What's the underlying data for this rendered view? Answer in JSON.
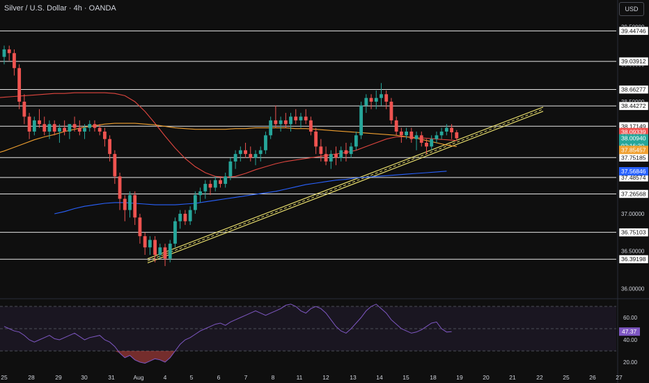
{
  "header": {
    "symbol_title": "Silver / U.S. Dollar · 4h · OANDA",
    "currency_button": "USD"
  },
  "colors": {
    "background": "#0f0f0f",
    "up": "#26a69a",
    "down": "#ef5350",
    "ema_fast": "#e0463f",
    "ema_mid": "#f0a030",
    "ema_slow": "#2962ff",
    "trendline": "#e6dc6c",
    "rsi": "#7e57c2",
    "level_line": "#e6e6e6"
  },
  "chart_data": [
    {
      "type": "candlestick",
      "title": "Silver / U.S. Dollar · 4h · OANDA",
      "ylim": [
        35.9,
        39.6
      ],
      "x_ticks": [
        "25",
        "28",
        "29",
        "30",
        "31",
        "Aug",
        "4",
        "5",
        "6",
        "7",
        "8",
        "11",
        "12",
        "13",
        "14",
        "15",
        "18",
        "19",
        "20",
        "21",
        "22",
        "25",
        "26",
        "27"
      ],
      "y_ticks": [
        "39.50000",
        "39.00000",
        "38.50000",
        "38.00000",
        "37.50000",
        "37.00000",
        "36.50000",
        "36.00000"
      ],
      "horizontal_levels": [
        "39.44746",
        "39.03912",
        "38.66277",
        "38.44272",
        "38.17149",
        "37.75185",
        "37.48574",
        "37.26568",
        "36.75103",
        "36.39198"
      ],
      "price_labels": [
        {
          "label": "38.09339",
          "value": 38.09339,
          "color": "#ef5350"
        },
        {
          "label": "38.00940",
          "value": 38.0094,
          "color": "#26a69a"
        },
        {
          "label": "02:16:30",
          "value": 37.95,
          "color": "#26a69a"
        },
        {
          "label": "37.85457",
          "value": 37.85457,
          "color": "#f0a030"
        },
        {
          "label": "37.56846",
          "value": 37.56846,
          "color": "#2962ff"
        }
      ],
      "candles_ohlc": [
        [
          39.1,
          39.25,
          39.0,
          39.2
        ],
        [
          39.2,
          39.25,
          39.05,
          39.15
        ],
        [
          39.15,
          39.2,
          38.85,
          38.95
        ],
        [
          38.95,
          39.0,
          38.4,
          38.5
        ],
        [
          38.5,
          38.6,
          38.2,
          38.3
        ],
        [
          38.3,
          38.35,
          38.0,
          38.1
        ],
        [
          38.1,
          38.3,
          38.05,
          38.25
        ],
        [
          38.25,
          38.4,
          38.15,
          38.2
        ],
        [
          38.2,
          38.3,
          38.05,
          38.1
        ],
        [
          38.1,
          38.25,
          38.0,
          38.2
        ],
        [
          38.2,
          38.25,
          38.05,
          38.1
        ],
        [
          38.1,
          38.2,
          37.95,
          38.15
        ],
        [
          38.15,
          38.25,
          38.05,
          38.1
        ],
        [
          38.1,
          38.2,
          38.0,
          38.2
        ],
        [
          38.2,
          38.3,
          38.1,
          38.15
        ],
        [
          38.15,
          38.25,
          38.05,
          38.1
        ],
        [
          38.1,
          38.2,
          38.0,
          38.15
        ],
        [
          38.15,
          38.25,
          38.1,
          38.2
        ],
        [
          38.2,
          38.25,
          38.1,
          38.15
        ],
        [
          38.15,
          38.2,
          38.05,
          38.1
        ],
        [
          38.1,
          38.15,
          37.9,
          38.0
        ],
        [
          38.0,
          38.05,
          37.7,
          37.8
        ],
        [
          37.8,
          37.85,
          37.4,
          37.5
        ],
        [
          37.5,
          37.55,
          37.05,
          37.2
        ],
        [
          37.2,
          37.25,
          36.9,
          37.05
        ],
        [
          37.05,
          37.3,
          36.95,
          37.25
        ],
        [
          37.25,
          37.3,
          36.85,
          36.95
        ],
        [
          36.95,
          37.0,
          36.6,
          36.7
        ],
        [
          36.7,
          36.75,
          36.45,
          36.55
        ],
        [
          36.55,
          36.7,
          36.45,
          36.65
        ],
        [
          36.65,
          36.7,
          36.35,
          36.45
        ],
        [
          36.45,
          36.6,
          36.4,
          36.55
        ],
        [
          36.55,
          36.6,
          36.3,
          36.4
        ],
        [
          36.4,
          36.65,
          36.35,
          36.6
        ],
        [
          36.6,
          36.95,
          36.55,
          36.9
        ],
        [
          36.9,
          37.05,
          36.8,
          37.0
        ],
        [
          37.0,
          37.05,
          36.85,
          36.9
        ],
        [
          36.9,
          37.1,
          36.85,
          37.05
        ],
        [
          37.05,
          37.3,
          37.0,
          37.25
        ],
        [
          37.25,
          37.35,
          37.15,
          37.3
        ],
        [
          37.3,
          37.45,
          37.2,
          37.4
        ],
        [
          37.4,
          37.45,
          37.25,
          37.35
        ],
        [
          37.35,
          37.5,
          37.3,
          37.45
        ],
        [
          37.45,
          37.5,
          37.35,
          37.4
        ],
        [
          37.4,
          37.55,
          37.35,
          37.5
        ],
        [
          37.5,
          37.75,
          37.45,
          37.7
        ],
        [
          37.7,
          37.85,
          37.6,
          37.8
        ],
        [
          37.8,
          37.9,
          37.7,
          37.85
        ],
        [
          37.85,
          37.95,
          37.75,
          37.8
        ],
        [
          37.8,
          37.9,
          37.7,
          37.75
        ],
        [
          37.75,
          37.85,
          37.65,
          37.8
        ],
        [
          37.8,
          37.9,
          37.7,
          37.85
        ],
        [
          37.85,
          38.1,
          37.8,
          38.05
        ],
        [
          38.05,
          38.3,
          38.0,
          38.25
        ],
        [
          38.25,
          38.45,
          38.15,
          38.2
        ],
        [
          38.2,
          38.3,
          38.1,
          38.25
        ],
        [
          38.25,
          38.35,
          38.15,
          38.2
        ],
        [
          38.2,
          38.35,
          38.1,
          38.3
        ],
        [
          38.3,
          38.4,
          38.2,
          38.25
        ],
        [
          38.25,
          38.35,
          38.15,
          38.3
        ],
        [
          38.3,
          38.4,
          38.2,
          38.25
        ],
        [
          38.25,
          38.3,
          38.05,
          38.1
        ],
        [
          38.1,
          38.15,
          37.8,
          37.9
        ],
        [
          37.9,
          38.0,
          37.7,
          37.8
        ],
        [
          37.8,
          37.9,
          37.65,
          37.7
        ],
        [
          37.7,
          37.85,
          37.6,
          37.8
        ],
        [
          37.8,
          37.9,
          37.65,
          37.75
        ],
        [
          37.75,
          37.9,
          37.7,
          37.85
        ],
        [
          37.85,
          37.95,
          37.7,
          37.8
        ],
        [
          37.8,
          37.95,
          37.75,
          37.9
        ],
        [
          37.9,
          38.1,
          37.85,
          38.05
        ],
        [
          38.05,
          38.5,
          38.0,
          38.45
        ],
        [
          38.45,
          38.6,
          38.35,
          38.55
        ],
        [
          38.55,
          38.6,
          38.4,
          38.5
        ],
        [
          38.5,
          38.65,
          38.4,
          38.55
        ],
        [
          38.55,
          38.75,
          38.45,
          38.6
        ],
        [
          38.6,
          38.65,
          38.4,
          38.5
        ],
        [
          38.5,
          38.55,
          38.2,
          38.25
        ],
        [
          38.25,
          38.3,
          38.05,
          38.1
        ],
        [
          38.1,
          38.15,
          37.95,
          38.05
        ],
        [
          38.05,
          38.15,
          38.0,
          38.1
        ],
        [
          38.1,
          38.15,
          37.95,
          38.0
        ],
        [
          38.0,
          38.1,
          37.85,
          38.05
        ],
        [
          38.05,
          38.1,
          37.9,
          37.95
        ],
        [
          37.95,
          38.0,
          37.8,
          37.9
        ],
        [
          37.9,
          38.05,
          37.85,
          38.0
        ],
        [
          38.0,
          38.1,
          37.95,
          38.05
        ],
        [
          38.05,
          38.15,
          38.0,
          38.1
        ],
        [
          38.1,
          38.2,
          38.05,
          38.15
        ],
        [
          38.15,
          38.2,
          38.0,
          38.09
        ],
        [
          38.09,
          38.12,
          37.98,
          38.01
        ]
      ],
      "ema_fast": [
        38.55,
        38.56,
        38.57,
        38.58,
        38.59,
        38.6,
        38.61,
        38.61,
        38.62,
        38.62,
        38.62,
        38.62,
        38.61,
        38.58,
        38.5,
        38.37,
        38.21,
        38.04,
        37.88,
        37.74,
        37.63,
        37.55,
        37.5,
        37.49,
        37.5,
        37.54,
        37.59,
        37.63,
        37.67,
        37.7,
        37.72,
        37.74,
        37.76,
        37.78,
        37.8,
        37.82,
        37.85,
        37.9,
        37.95,
        38.0,
        38.03,
        38.03,
        38.02,
        38.01,
        38.0,
        37.99,
        37.98
      ],
      "ema_mid": [
        37.8,
        37.84,
        37.89,
        37.94,
        37.99,
        38.03,
        38.06,
        38.1,
        38.13,
        38.16,
        38.18,
        38.2,
        38.21,
        38.21,
        38.21,
        38.2,
        38.19,
        38.17,
        38.15,
        38.14,
        38.13,
        38.13,
        38.13,
        38.13,
        38.14,
        38.14,
        38.15,
        38.15,
        38.15,
        38.15,
        38.14,
        38.14,
        38.13,
        38.12,
        38.11,
        38.1,
        38.09,
        38.08,
        38.07,
        38.06,
        38.05,
        38.03,
        38.01,
        37.98,
        37.95,
        37.92,
        37.9
      ],
      "ema_slow": [
        37.0,
        37.03,
        37.07,
        37.1,
        37.12,
        37.14,
        37.15,
        37.15,
        37.14,
        37.13,
        37.12,
        37.12,
        37.12,
        37.13,
        37.14,
        37.16,
        37.18,
        37.2,
        37.22,
        37.24,
        37.26,
        37.28,
        37.3,
        37.33,
        37.36,
        37.39,
        37.41,
        37.43,
        37.45,
        37.46,
        37.48,
        37.49,
        37.5,
        37.51,
        37.52,
        37.53,
        37.54,
        37.55,
        37.56,
        37.57
      ]
    },
    {
      "type": "line",
      "ylim": [
        15,
        75
      ],
      "y_ticks": [
        "60.00",
        "40.00",
        "20.00"
      ],
      "bands": [
        70,
        50,
        30
      ],
      "current_label": "47.37",
      "values": [
        52,
        50,
        48,
        47,
        44,
        40,
        38,
        40,
        42,
        44,
        41,
        40,
        42,
        44,
        46,
        43,
        40,
        42,
        43,
        44,
        40,
        38,
        34,
        28,
        24,
        26,
        22,
        20,
        19,
        21,
        23,
        22,
        20,
        24,
        30,
        36,
        40,
        42,
        45,
        48,
        50,
        52,
        54,
        55,
        53,
        56,
        58,
        60,
        62,
        64,
        66,
        64,
        62,
        64,
        66,
        68,
        71,
        72,
        70,
        66,
        64,
        68,
        70,
        68,
        64,
        58,
        52,
        48,
        46,
        50,
        55,
        60,
        66,
        70,
        72,
        68,
        64,
        58,
        54,
        50,
        48,
        46,
        47,
        49,
        52,
        55,
        56,
        50,
        47,
        47.37
      ]
    }
  ]
}
